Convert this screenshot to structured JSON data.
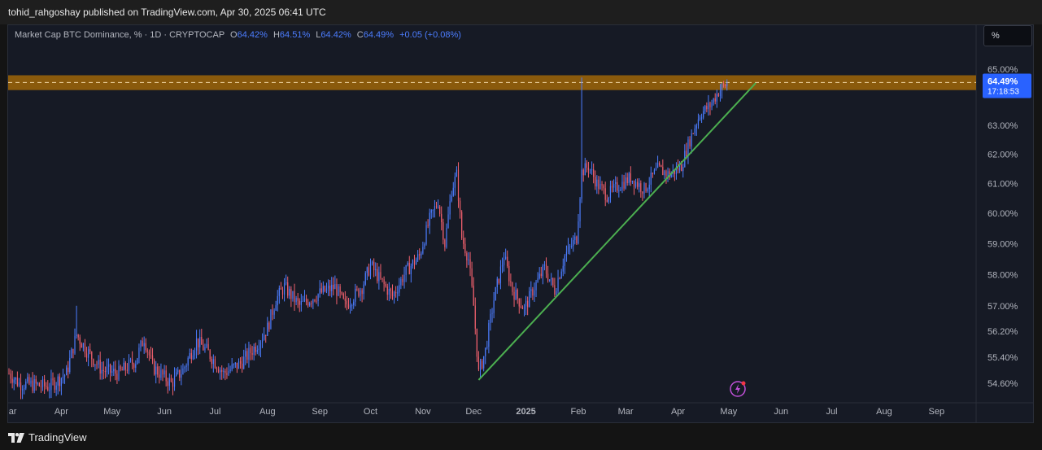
{
  "publisher": "tohid_rahgoshay published on TradingView.com, Apr 30, 2025 06:41 UTC",
  "legend": {
    "symbol": "Market Cap BTC Dominance, % · 1D · CRYPTOCAP",
    "o_label": "O",
    "o_value": "64.42%",
    "h_label": "H",
    "h_value": "64.51%",
    "l_label": "L",
    "l_value": "64.42%",
    "c_label": "C",
    "c_value": "64.49%",
    "change": "+0.05 (+0.08%)"
  },
  "unit_button": "%",
  "price_tag": {
    "value": "64.49%",
    "countdown": "17:18:53"
  },
  "brand": "TradingView",
  "colors": {
    "background": "#161a25",
    "up": "#4c7dff",
    "down": "#f0606d",
    "trendline": "#4caf50",
    "zone": "#8a5a0c",
    "label_bg": "#2962ff"
  },
  "icons": [
    "lightning-icon",
    "tradingview-logo-icon"
  ],
  "chart_data": {
    "type": "candlestick",
    "y_scale": "log",
    "y_ticks": [
      {
        "value": 65.0,
        "label": "65.00%"
      },
      {
        "value": 63.0,
        "label": "63.00%"
      },
      {
        "value": 62.0,
        "label": "62.00%"
      },
      {
        "value": 61.0,
        "label": "61.00%"
      },
      {
        "value": 60.0,
        "label": "60.00%"
      },
      {
        "value": 59.0,
        "label": "59.00%"
      },
      {
        "value": 58.0,
        "label": "58.00%"
      },
      {
        "value": 57.0,
        "label": "57.00%"
      },
      {
        "value": 56.2,
        "label": "56.20%"
      },
      {
        "value": 55.4,
        "label": "55.40%"
      },
      {
        "value": 54.6,
        "label": "54.60%"
      }
    ],
    "x_ticks": [
      {
        "date": "2024-03-01",
        "label": "Mar"
      },
      {
        "date": "2024-04-01",
        "label": "Apr"
      },
      {
        "date": "2024-05-01",
        "label": "May"
      },
      {
        "date": "2024-06-01",
        "label": "Jun"
      },
      {
        "date": "2024-07-01",
        "label": "Jul"
      },
      {
        "date": "2024-08-01",
        "label": "Aug"
      },
      {
        "date": "2024-09-01",
        "label": "Sep"
      },
      {
        "date": "2024-10-01",
        "label": "Oct"
      },
      {
        "date": "2024-11-01",
        "label": "Nov"
      },
      {
        "date": "2024-12-01",
        "label": "Dec"
      },
      {
        "date": "2025-01-01",
        "label": "2025",
        "bold": true
      },
      {
        "date": "2025-02-01",
        "label": "Feb"
      },
      {
        "date": "2025-03-01",
        "label": "Mar"
      },
      {
        "date": "2025-04-01",
        "label": "Apr"
      },
      {
        "date": "2025-05-01",
        "label": "May"
      },
      {
        "date": "2025-06-01",
        "label": "Jun"
      },
      {
        "date": "2025-07-01",
        "label": "Jul"
      },
      {
        "date": "2025-08-01",
        "label": "Aug"
      },
      {
        "date": "2025-09-01",
        "label": "Sep"
      }
    ],
    "x_range": [
      "2024-03-01",
      "2025-09-10"
    ],
    "last_close": 64.49,
    "resistance_zone": {
      "low": 64.25,
      "high": 64.78,
      "midline": 64.52
    },
    "trendline": {
      "start": {
        "date": "2024-12-04",
        "value": 54.7
      },
      "end": {
        "date": "2025-05-17",
        "value": 64.5
      }
    },
    "price_path": [
      {
        "date": "2024-03-01",
        "value": 54.9
      },
      {
        "date": "2024-03-07",
        "value": 54.6
      },
      {
        "date": "2024-03-25",
        "value": 54.5
      },
      {
        "date": "2024-04-04",
        "value": 54.9
      },
      {
        "date": "2024-04-10",
        "value": 56.1
      },
      {
        "date": "2024-04-16",
        "value": 55.6
      },
      {
        "date": "2024-04-25",
        "value": 55.0
      },
      {
        "date": "2024-05-05",
        "value": 54.9
      },
      {
        "date": "2024-05-15",
        "value": 55.3
      },
      {
        "date": "2024-05-20",
        "value": 56.0
      },
      {
        "date": "2024-05-25",
        "value": 55.1
      },
      {
        "date": "2024-06-05",
        "value": 54.6
      },
      {
        "date": "2024-06-12",
        "value": 55.0
      },
      {
        "date": "2024-06-20",
        "value": 55.9
      },
      {
        "date": "2024-06-26",
        "value": 55.6
      },
      {
        "date": "2024-07-06",
        "value": 54.9
      },
      {
        "date": "2024-07-16",
        "value": 55.2
      },
      {
        "date": "2024-07-26",
        "value": 55.8
      },
      {
        "date": "2024-08-01",
        "value": 56.3
      },
      {
        "date": "2024-08-06",
        "value": 57.2
      },
      {
        "date": "2024-08-11",
        "value": 57.6
      },
      {
        "date": "2024-08-20",
        "value": 57.0
      },
      {
        "date": "2024-09-01",
        "value": 57.4
      },
      {
        "date": "2024-09-10",
        "value": 57.6
      },
      {
        "date": "2024-09-16",
        "value": 57.0
      },
      {
        "date": "2024-09-26",
        "value": 57.6
      },
      {
        "date": "2024-10-01",
        "value": 58.3
      },
      {
        "date": "2024-10-07",
        "value": 57.8
      },
      {
        "date": "2024-10-14",
        "value": 57.3
      },
      {
        "date": "2024-10-22",
        "value": 58.1
      },
      {
        "date": "2024-10-30",
        "value": 58.6
      },
      {
        "date": "2024-11-05",
        "value": 59.8
      },
      {
        "date": "2024-11-10",
        "value": 60.4
      },
      {
        "date": "2024-11-14",
        "value": 59.0
      },
      {
        "date": "2024-11-18",
        "value": 60.8
      },
      {
        "date": "2024-11-21",
        "value": 61.3
      },
      {
        "date": "2024-11-24",
        "value": 59.2
      },
      {
        "date": "2024-11-28",
        "value": 58.5
      },
      {
        "date": "2024-12-01",
        "value": 57.0
      },
      {
        "date": "2024-12-04",
        "value": 54.9
      },
      {
        "date": "2024-12-08",
        "value": 55.6
      },
      {
        "date": "2024-12-13",
        "value": 57.2
      },
      {
        "date": "2024-12-19",
        "value": 58.6
      },
      {
        "date": "2024-12-24",
        "value": 57.5
      },
      {
        "date": "2024-12-31",
        "value": 56.9
      },
      {
        "date": "2025-01-06",
        "value": 57.6
      },
      {
        "date": "2025-01-12",
        "value": 58.2
      },
      {
        "date": "2025-01-18",
        "value": 57.5
      },
      {
        "date": "2025-01-24",
        "value": 58.6
      },
      {
        "date": "2025-01-31",
        "value": 59.2
      },
      {
        "date": "2025-02-03",
        "value": 61.4
      },
      {
        "date": "2025-02-07",
        "value": 61.6
      },
      {
        "date": "2025-02-12",
        "value": 61.0
      },
      {
        "date": "2025-02-18",
        "value": 60.6
      },
      {
        "date": "2025-02-24",
        "value": 60.9
      },
      {
        "date": "2025-03-04",
        "value": 61.2
      },
      {
        "date": "2025-03-12",
        "value": 60.8
      },
      {
        "date": "2025-03-20",
        "value": 61.5
      },
      {
        "date": "2025-03-27",
        "value": 61.3
      },
      {
        "date": "2025-04-03",
        "value": 61.6
      },
      {
        "date": "2025-04-08",
        "value": 62.5
      },
      {
        "date": "2025-04-14",
        "value": 63.4
      },
      {
        "date": "2025-04-20",
        "value": 63.7
      },
      {
        "date": "2025-04-25",
        "value": 64.2
      },
      {
        "date": "2025-04-30",
        "value": 64.49
      }
    ]
  }
}
